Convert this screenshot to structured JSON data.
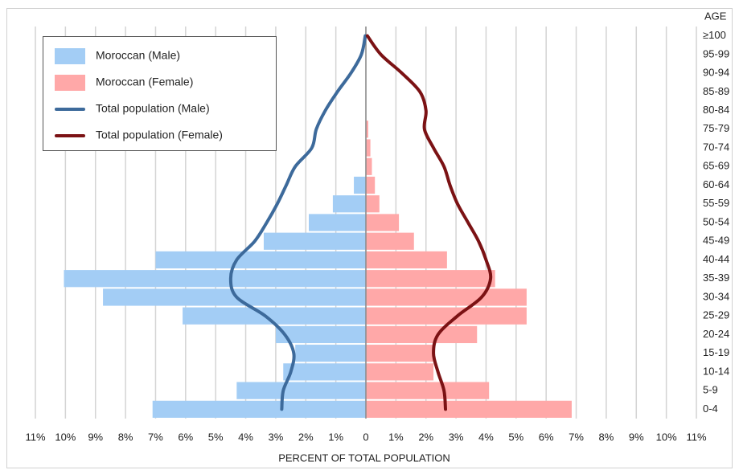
{
  "chart_data": {
    "type": "population-pyramid",
    "categories_title": "AGE",
    "x_label": "PERCENT  OF TOTAL POPULATION",
    "categories": [
      "0-4",
      "5-9",
      "10-14",
      "15-19",
      "20-24",
      "25-29",
      "30-34",
      "35-39",
      "40-44",
      "45-49",
      "50-54",
      "55-59",
      "60-64",
      "65-69",
      "70-74",
      "75-79",
      "80-84",
      "85-89",
      "90-94",
      "95-99",
      "≥100"
    ],
    "series": [
      {
        "name": "Moroccan (Male)",
        "color": "#a3cdf5",
        "kind": "bar",
        "side": "left",
        "values": [
          7.1,
          4.3,
          2.75,
          2.35,
          3.0,
          6.1,
          8.75,
          10.05,
          7.0,
          3.4,
          1.9,
          1.1,
          0.4,
          0,
          0,
          0,
          0,
          0,
          0,
          0,
          0
        ]
      },
      {
        "name": "Moroccan (Female)",
        "color": "#ffa8a8",
        "kind": "bar",
        "side": "right",
        "values": [
          6.85,
          4.1,
          2.25,
          2.25,
          3.7,
          5.35,
          5.35,
          4.3,
          2.7,
          1.6,
          1.1,
          0.45,
          0.3,
          0.2,
          0.15,
          0.08,
          0,
          0,
          0,
          0,
          0
        ]
      },
      {
        "name": "Total population (Male)",
        "color": "#3d6a9b",
        "kind": "line",
        "side": "left",
        "values": [
          2.8,
          2.75,
          2.5,
          2.4,
          2.7,
          3.35,
          4.3,
          4.5,
          4.3,
          3.7,
          3.3,
          2.95,
          2.65,
          2.35,
          1.8,
          1.65,
          1.35,
          0.95,
          0.5,
          0.15,
          0.02
        ]
      },
      {
        "name": "Total population (Female)",
        "color": "#7b1214",
        "kind": "line",
        "side": "right",
        "values": [
          2.65,
          2.6,
          2.4,
          2.25,
          2.4,
          3.05,
          3.85,
          4.15,
          4.0,
          3.75,
          3.4,
          3.05,
          2.8,
          2.6,
          2.25,
          1.95,
          2.0,
          1.8,
          1.2,
          0.5,
          0.05
        ]
      }
    ],
    "xlim": [
      -11,
      11
    ],
    "xticks": [
      {
        "value": -11,
        "label": "11%"
      },
      {
        "value": -10,
        "label": "10%"
      },
      {
        "value": -9,
        "label": "9%"
      },
      {
        "value": -8,
        "label": "8%"
      },
      {
        "value": -7,
        "label": "7%"
      },
      {
        "value": -6,
        "label": "6%"
      },
      {
        "value": -5,
        "label": "5%"
      },
      {
        "value": -4,
        "label": "4%"
      },
      {
        "value": -3,
        "label": "3%"
      },
      {
        "value": -2,
        "label": "2%"
      },
      {
        "value": -1,
        "label": "1%"
      },
      0,
      {
        "value": 1,
        "label": "1%"
      },
      {
        "value": 2,
        "label": "2%"
      },
      {
        "value": 3,
        "label": "3%"
      },
      {
        "value": 4,
        "label": "4%"
      },
      {
        "value": 5,
        "label": "5%"
      },
      {
        "value": 6,
        "label": "6%"
      },
      {
        "value": 7,
        "label": "7%"
      },
      {
        "value": 8,
        "label": "8%"
      },
      {
        "value": 9,
        "label": "9%"
      },
      {
        "value": 10,
        "label": "10%"
      },
      {
        "value": 11,
        "label": "11%"
      }
    ],
    "grid": true,
    "legend": "top-left"
  }
}
